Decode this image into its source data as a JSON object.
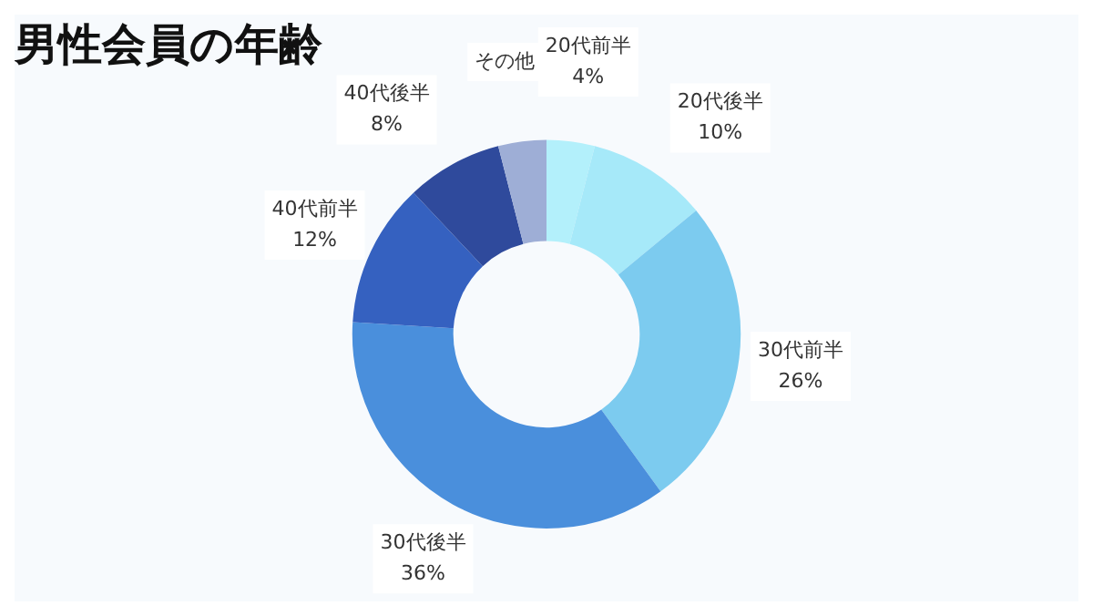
{
  "chart_data": {
    "type": "donut",
    "title": "男性会員の年齢",
    "categories": [
      "20代前半",
      "20代後半",
      "30代前半",
      "30代後半",
      "40代前半",
      "40代後半",
      "その他"
    ],
    "values": [
      4,
      10,
      26,
      36,
      12,
      8,
      4
    ],
    "value_labels": [
      "4%",
      "10%",
      "26%",
      "36%",
      "12%",
      "8%",
      null
    ],
    "colors": [
      "#b3f0fb",
      "#a6e9f9",
      "#7ccbef",
      "#4a8fdc",
      "#3561c0",
      "#2f4a9c",
      "#9eaed6"
    ]
  }
}
